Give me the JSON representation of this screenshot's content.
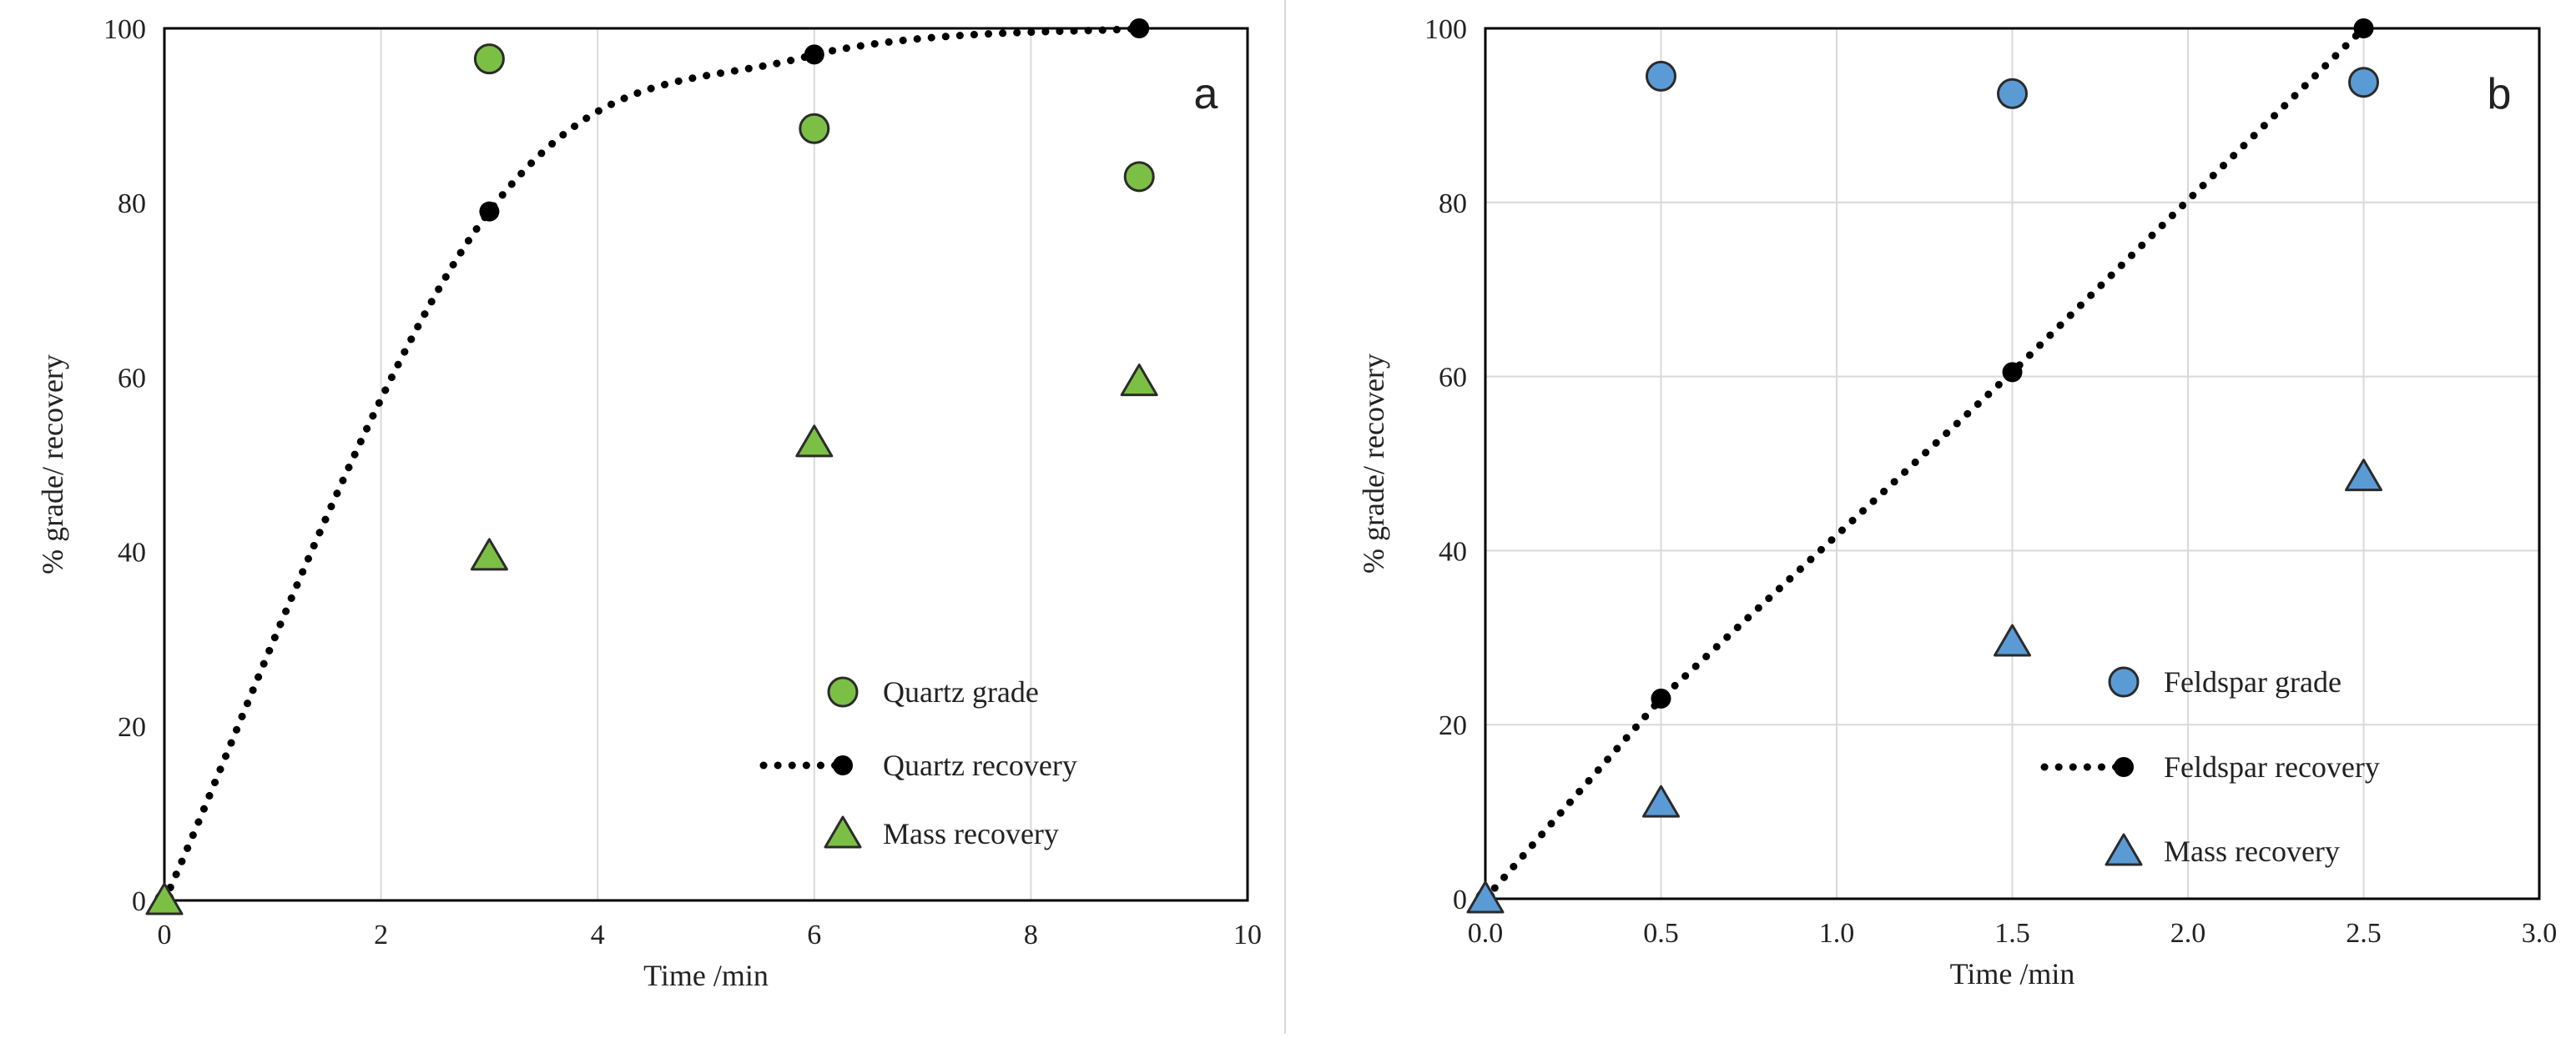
{
  "figure": {
    "panel_separator": true
  },
  "chart_data": [
    {
      "type": "scatter",
      "panel_label": "a",
      "xlabel": "Time /min",
      "ylabel": "%  grade/ recovery",
      "xlim": [
        0,
        10
      ],
      "ylim": [
        0,
        100
      ],
      "xticks": [
        0,
        2,
        4,
        6,
        8,
        10
      ],
      "yticks": [
        0,
        20,
        40,
        60,
        80,
        100
      ],
      "xtick_labels": [
        "0",
        "2",
        "4",
        "6",
        "8",
        "10"
      ],
      "ytick_labels": [
        "0",
        "20",
        "40",
        "60",
        "80",
        "100"
      ],
      "grid": "vertical",
      "legend_position": "bottom-right",
      "series": [
        {
          "name": "Quartz grade",
          "marker": "circle",
          "color": "#7cbf45",
          "x": [
            3,
            6,
            9
          ],
          "y": [
            96.5,
            88.5,
            83
          ]
        },
        {
          "name": "Quartz recovery",
          "marker": "dot",
          "color": "#000000",
          "line": "dotted",
          "x": [
            0,
            3,
            6,
            9
          ],
          "y": [
            0,
            79,
            97,
            100
          ]
        },
        {
          "name": "Mass recovery",
          "marker": "triangle",
          "color": "#7cbf45",
          "x": [
            0,
            3,
            6,
            9
          ],
          "y": [
            0,
            39.5,
            52.5,
            59.5
          ]
        }
      ]
    },
    {
      "type": "scatter",
      "panel_label": "b",
      "xlabel": "Time /min",
      "ylabel": "% grade/ recovery",
      "xlim": [
        0,
        3
      ],
      "ylim": [
        0,
        100
      ],
      "xticks": [
        0,
        0.5,
        1,
        1.5,
        2,
        2.5,
        3
      ],
      "yticks": [
        0,
        20,
        40,
        60,
        80,
        100
      ],
      "xtick_labels": [
        "0.0",
        "0.5",
        "1.0",
        "1.5",
        "2.0",
        "2.5",
        "3.0"
      ],
      "ytick_labels": [
        "0",
        "20",
        "40",
        "60",
        "80",
        "100"
      ],
      "grid": "both",
      "legend_position": "bottom-right",
      "series": [
        {
          "name": "Feldspar grade",
          "marker": "circle",
          "color": "#5b9bd5",
          "x": [
            0.5,
            1.5,
            2.5
          ],
          "y": [
            94.5,
            92.5,
            93.8
          ]
        },
        {
          "name": "Feldspar recovery",
          "marker": "dot",
          "color": "#000000",
          "line": "dotted",
          "x": [
            0,
            0.5,
            1.5,
            2.5
          ],
          "y": [
            0,
            23,
            60.5,
            100
          ]
        },
        {
          "name": "Mass recovery",
          "marker": "triangle",
          "color": "#5b9bd5",
          "x": [
            0,
            0.5,
            1.5,
            2.5
          ],
          "y": [
            0,
            11,
            29.5,
            48.5
          ]
        }
      ]
    }
  ]
}
